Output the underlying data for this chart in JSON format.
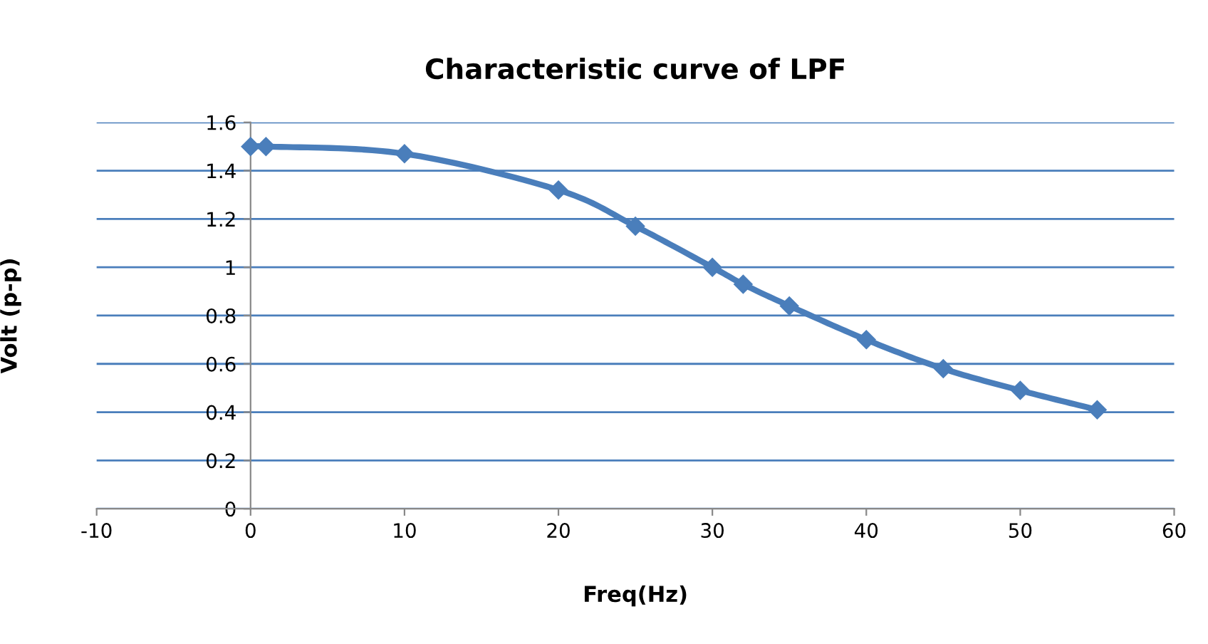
{
  "chart_data": {
    "type": "line",
    "title": "Characteristic curve of LPF",
    "xlabel": "Freq(Hz)",
    "ylabel": "Volt (p-p)",
    "x": [
      0,
      1,
      10,
      20,
      25,
      30,
      32,
      35,
      40,
      45,
      50,
      55
    ],
    "series": [
      {
        "color": "#4a7ebb",
        "values": [
          1.5,
          1.5,
          1.47,
          1.32,
          1.17,
          1.0,
          0.93,
          0.84,
          0.7,
          0.58,
          0.49,
          0.41
        ]
      }
    ],
    "xlim": [
      -10,
      60
    ],
    "xticks": [
      -10,
      0,
      10,
      20,
      30,
      40,
      50,
      60
    ],
    "ylim": [
      0,
      1.6
    ],
    "yticks": [
      0,
      0.2,
      0.4,
      0.6,
      0.8,
      1,
      1.2,
      1.4,
      1.6
    ],
    "grid": "y",
    "marker": "diamond",
    "line_style": "solid",
    "legend": false
  }
}
